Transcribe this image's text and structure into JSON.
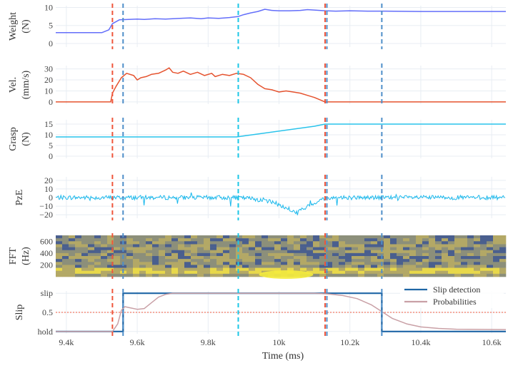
{
  "chart_data": {
    "type": "line",
    "x_axis": {
      "label": "Time (ms)",
      "range": [
        9370,
        10640
      ],
      "ticks": [
        9400,
        9600,
        9800,
        10000,
        10200,
        10400,
        10600
      ],
      "tick_labels": [
        "9.4k",
        "9.6k",
        "9.8k",
        "10k",
        "10.2k",
        "10.4k",
        "10.6k"
      ]
    },
    "events": [
      {
        "x": 9530,
        "color": "#ef553b"
      },
      {
        "x": 9560,
        "color": "#4f8fc9"
      },
      {
        "x": 9885,
        "color": "#1cc6e6"
      },
      {
        "x": 10130,
        "color": "#ef553b"
      },
      {
        "x": 10135,
        "color": "#4f8fc9"
      },
      {
        "x": 10290,
        "color": "#4f8fc9"
      }
    ],
    "grid": true,
    "panels": [
      {
        "id": "weight",
        "ylabel": [
          "Weight",
          "(N)"
        ],
        "ylim": [
          -1,
          10.5
        ],
        "yticks": [
          0,
          5,
          10
        ],
        "ytick_labels": [
          "0",
          "5",
          "10"
        ],
        "series": [
          {
            "color": "#636efa",
            "x": [
              9370,
              9500,
              9520,
              9530,
              9550,
              9600,
              9620,
              9650,
              9680,
              9700,
              9720,
              9750,
              9780,
              9800,
              9830,
              9860,
              9885,
              9900,
              9920,
              9940,
              9960,
              9980,
              10000,
              10030,
              10060,
              10080,
              10100,
              10130,
              10160,
              10200,
              10250,
              10300,
              10400,
              10500,
              10640
            ],
            "y": [
              3,
              3,
              3.8,
              5.5,
              6.6,
              6.8,
              6.7,
              6.9,
              6.8,
              6.9,
              7,
              7.1,
              6.9,
              7.1,
              7,
              7.2,
              7.5,
              8,
              8.5,
              8.9,
              9.5,
              9.2,
              9.1,
              9.1,
              9.2,
              9.4,
              9.3,
              9.1,
              9.0,
              9.1,
              9.0,
              9.0,
              8.9,
              8.9,
              8.9
            ]
          }
        ]
      },
      {
        "id": "velocity",
        "ylabel": [
          "Vel.",
          "(mm/s)"
        ],
        "ylim": [
          -2,
          33
        ],
        "yticks": [
          0,
          10,
          20,
          30
        ],
        "ytick_labels": [
          "0",
          "10",
          "20",
          "30"
        ],
        "series": [
          {
            "color": "#e5532f",
            "x": [
              9370,
              9525,
              9530,
              9540,
              9555,
              9570,
              9590,
              9600,
              9610,
              9625,
              9640,
              9660,
              9680,
              9690,
              9700,
              9715,
              9730,
              9750,
              9770,
              9790,
              9810,
              9820,
              9840,
              9860,
              9880,
              9900,
              9920,
              9940,
              9960,
              9980,
              10000,
              10020,
              10040,
              10060,
              10080,
              10100,
              10130,
              10200,
              10640
            ],
            "y": [
              0,
              0,
              8,
              14,
              22,
              26,
              24,
              20,
              22,
              23,
              25,
              26,
              29,
              31,
              27,
              26,
              28,
              25,
              27,
              24,
              26,
              23,
              25,
              24,
              26,
              25,
              22,
              16,
              12,
              11,
              9,
              10,
              9,
              8,
              6,
              4,
              0,
              0,
              0
            ]
          }
        ]
      },
      {
        "id": "grasp",
        "ylabel": [
          "Grasp",
          "(N)"
        ],
        "ylim": [
          -1,
          17
        ],
        "yticks": [
          0,
          5,
          10,
          15
        ],
        "ytick_labels": [
          "0",
          "5",
          "10",
          "15"
        ],
        "series": [
          {
            "color": "#29c3eb",
            "x": [
              9370,
              9880,
              10100,
              10130,
              10640
            ],
            "y": [
              9,
              9,
              14,
              15,
              15
            ]
          }
        ]
      },
      {
        "id": "pze",
        "ylabel": [
          "PzE"
        ],
        "ylim": [
          -24,
          24
        ],
        "yticks": [
          -20,
          -10,
          0,
          10,
          20
        ],
        "ytick_labels": [
          "−20",
          "−10",
          "0",
          "10",
          "20"
        ],
        "series": [
          {
            "color": "#19b8ec",
            "x": [
              9370,
              9880,
              9920,
              9960,
              10000,
              10030,
              10050,
              10070,
              10100,
              10130,
              10160,
              10640
            ],
            "y": [
              0,
              0,
              -1,
              -3,
              -8,
              -15,
              -17,
              -13,
              -6,
              -1,
              0,
              0
            ]
          }
        ]
      },
      {
        "id": "fft",
        "type": "heatmap",
        "ylabel": [
          "FFT",
          "(Hz)"
        ],
        "ylim": [
          0,
          700
        ],
        "yticks": [
          200,
          400,
          600
        ],
        "ytick_labels": [
          "200",
          "400",
          "600"
        ],
        "colors": [
          "#4a5f8e",
          "#8c8f7a",
          "#b3a866",
          "#e8d84a"
        ]
      },
      {
        "id": "slip",
        "ylabel": [
          "Slip"
        ],
        "ylim": [
          -0.06,
          1.06
        ],
        "yticks": [
          0,
          0.5,
          1
        ],
        "ytick_labels": [
          "hold",
          "0.5",
          "slip"
        ],
        "threshold": {
          "y": 0.5,
          "color": "#ef553b"
        },
        "series": [
          {
            "name": "Slip detection",
            "color": "#1f66a6",
            "x": [
              9370,
              9560,
              9560,
              10290,
              10290,
              10640
            ],
            "y": [
              0,
              0,
              1,
              1,
              0,
              0
            ]
          },
          {
            "name": "Probabilities",
            "color": "#c9a0a6",
            "x": [
              9370,
              9530,
              9545,
              9555,
              9565,
              9580,
              9600,
              9620,
              9640,
              9660,
              9680,
              9700,
              9740,
              10100,
              10140,
              10180,
              10220,
              10260,
              10290,
              10320,
              10360,
              10400,
              10450,
              10500,
              10640
            ],
            "y": [
              0,
              0,
              0.2,
              0.55,
              0.65,
              0.62,
              0.58,
              0.6,
              0.75,
              0.9,
              0.97,
              1,
              1,
              1,
              0.98,
              0.94,
              0.86,
              0.7,
              0.52,
              0.34,
              0.2,
              0.12,
              0.08,
              0.06,
              0.05
            ]
          }
        ]
      }
    ]
  },
  "legend": {
    "position": "top-right of slip panel",
    "entries": [
      {
        "label": "Slip detection",
        "color": "#1f66a6"
      },
      {
        "label": "Probabilities",
        "color": "#c9a0a6"
      }
    ]
  }
}
